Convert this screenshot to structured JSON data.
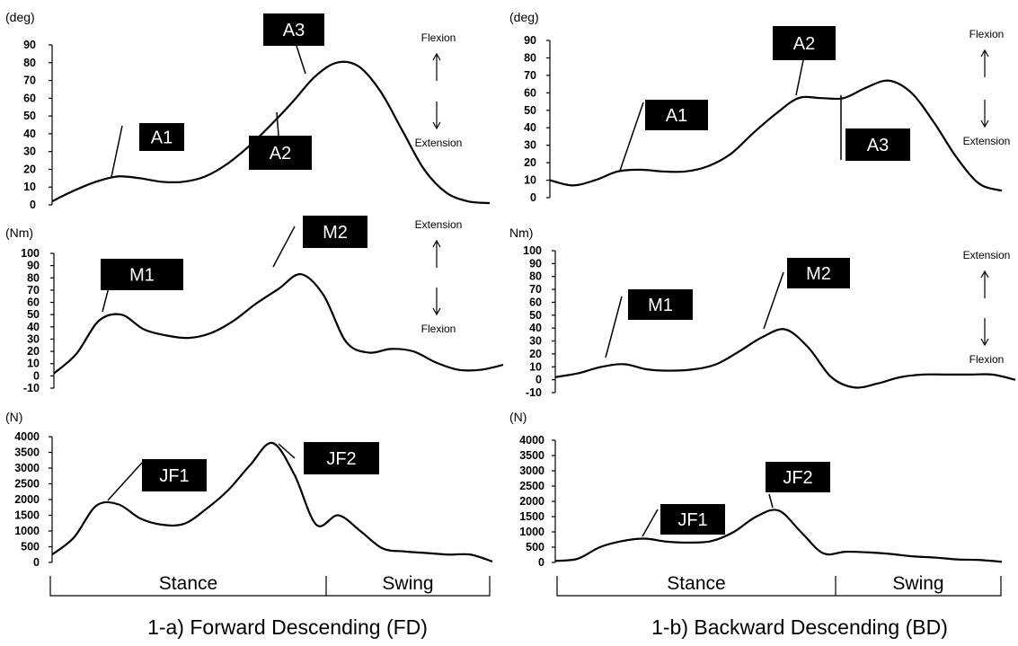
{
  "chart_data": [
    {
      "type": "line",
      "title": "",
      "xlabel": "",
      "ylabel": "(deg)",
      "ylim": [
        0,
        90
      ],
      "yticks": [
        "0",
        "10",
        "20",
        "30",
        "40",
        "50",
        "60",
        "70",
        "80",
        "90"
      ],
      "direction_labels": [
        "Flexion",
        "Extension"
      ],
      "x": [
        0,
        5,
        10,
        15,
        20,
        25,
        30,
        35,
        40,
        45,
        50,
        55,
        60,
        65,
        70,
        75,
        80,
        85,
        90,
        95,
        100
      ],
      "values": [
        2,
        8,
        13,
        16,
        15,
        13,
        13,
        16,
        23,
        33,
        45,
        58,
        72,
        80,
        78,
        64,
        42,
        20,
        7,
        2,
        1
      ],
      "annotations": [
        "A1",
        "A2",
        "A3"
      ]
    },
    {
      "type": "line",
      "title": "",
      "xlabel": "",
      "ylabel": "(Nm)",
      "ylim": [
        -10,
        100
      ],
      "yticks": [
        "-10",
        "0",
        "10",
        "20",
        "30",
        "40",
        "50",
        "60",
        "70",
        "80",
        "90",
        "100"
      ],
      "direction_labels": [
        "Extension",
        "Flexion"
      ],
      "x": [
        0,
        5,
        10,
        15,
        20,
        25,
        30,
        35,
        40,
        45,
        50,
        55,
        60,
        65,
        70,
        75,
        80,
        85,
        90,
        95,
        100
      ],
      "values": [
        2,
        18,
        45,
        50,
        38,
        33,
        31,
        35,
        45,
        59,
        71,
        83,
        66,
        28,
        19,
        22,
        20,
        11,
        5,
        5,
        9
      ],
      "annotations": [
        "M1",
        "M2"
      ]
    },
    {
      "type": "line",
      "title": "",
      "xlabel": "",
      "ylabel": "(N)",
      "ylim": [
        0,
        4000
      ],
      "yticks": [
        "0",
        "500",
        "1000",
        "1500",
        "2000",
        "2500",
        "3000",
        "3500",
        "4000"
      ],
      "x": [
        0,
        5,
        10,
        15,
        20,
        25,
        30,
        35,
        40,
        45,
        50,
        55,
        60,
        65,
        70,
        75,
        80,
        85,
        90,
        95,
        100
      ],
      "values": [
        250,
        800,
        1800,
        1850,
        1400,
        1200,
        1230,
        1700,
        2300,
        3100,
        3800,
        2800,
        1200,
        1500,
        1000,
        450,
        350,
        300,
        250,
        250,
        30
      ],
      "annotations": [
        "JF1",
        "JF2"
      ]
    },
    {
      "type": "line",
      "title": "",
      "xlabel": "",
      "ylabel": "(deg)",
      "ylim": [
        0,
        90
      ],
      "yticks": [
        "0",
        "10",
        "20",
        "30",
        "40",
        "50",
        "60",
        "70",
        "80",
        "90"
      ],
      "direction_labels": [
        "Flexion",
        "Extension"
      ],
      "x": [
        0,
        5,
        10,
        15,
        20,
        25,
        30,
        35,
        40,
        45,
        50,
        55,
        60,
        65,
        70,
        75,
        80,
        85,
        90,
        95,
        100
      ],
      "values": [
        10,
        7,
        10,
        15,
        16,
        15,
        15,
        18,
        25,
        37,
        48,
        57,
        57,
        57,
        63,
        67,
        60,
        43,
        23,
        8,
        4
      ],
      "annotations": [
        "A1",
        "A2",
        "A3"
      ]
    },
    {
      "type": "line",
      "title": "",
      "xlabel": "",
      "ylabel": "Nm)",
      "ylim": [
        -10,
        100
      ],
      "yticks": [
        "-10",
        "0",
        "10",
        "20",
        "30",
        "40",
        "50",
        "60",
        "70",
        "80",
        "90",
        "100"
      ],
      "direction_labels": [
        "Extension",
        "Flexion"
      ],
      "x": [
        0,
        5,
        10,
        15,
        20,
        25,
        30,
        35,
        40,
        45,
        50,
        55,
        60,
        65,
        70,
        75,
        80,
        85,
        90,
        95,
        100
      ],
      "values": [
        2,
        5,
        10,
        12,
        8,
        7,
        8,
        12,
        22,
        33,
        39,
        25,
        2,
        -6,
        -3,
        2,
        4,
        4,
        4,
        4,
        0
      ],
      "annotations": [
        "M1",
        "M2"
      ]
    },
    {
      "type": "line",
      "title": "",
      "xlabel": "",
      "ylabel": "(N)",
      "ylim": [
        0,
        4000
      ],
      "yticks": [
        "0",
        "500",
        "1000",
        "1500",
        "2000",
        "2500",
        "3000",
        "3500",
        "4000"
      ],
      "x": [
        0,
        5,
        10,
        15,
        20,
        25,
        30,
        35,
        40,
        45,
        50,
        55,
        60,
        65,
        70,
        75,
        80,
        85,
        90,
        95,
        100
      ],
      "values": [
        50,
        120,
        500,
        700,
        780,
        680,
        650,
        700,
        1000,
        1500,
        1700,
        1000,
        300,
        350,
        330,
        280,
        200,
        160,
        100,
        80,
        20
      ],
      "annotations": [
        "JF1",
        "JF2"
      ]
    }
  ],
  "phases": {
    "stance": "Stance",
    "swing": "Swing"
  },
  "captions": {
    "left": "1-a)  Forward Descending (FD)",
    "right": "1-b)  Backward Descending (BD)"
  }
}
